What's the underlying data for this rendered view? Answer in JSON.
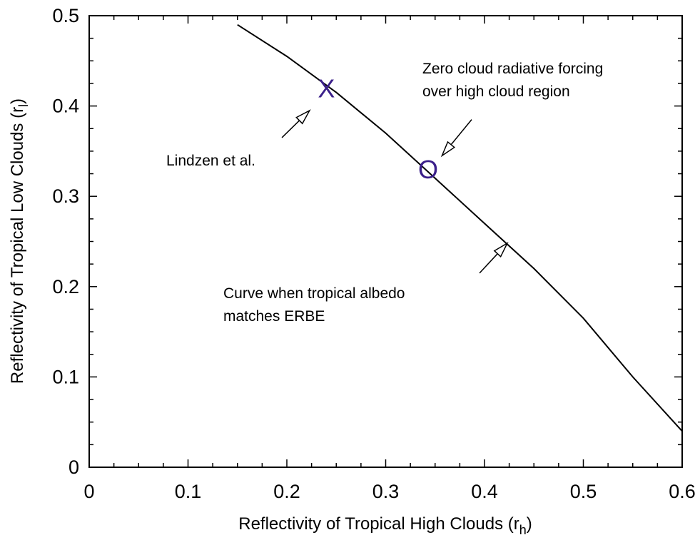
{
  "chart_data": {
    "type": "line",
    "xlabel": "Reflectivity of Tropical High Clouds (r",
    "xlabel_sub": "h",
    "xlabel_close": ")",
    "ylabel": "Reflectivity of Tropical Low Clouds (r",
    "ylabel_sub": "l",
    "ylabel_close": ")",
    "xlim": [
      0,
      0.6
    ],
    "ylim": [
      0,
      0.5
    ],
    "xticks": [
      0,
      0.1,
      0.2,
      0.3,
      0.4,
      0.5,
      0.6
    ],
    "xtick_labels": [
      "0",
      "0.1",
      "0.2",
      "0.3",
      "0.4",
      "0.5",
      "0.6"
    ],
    "yticks": [
      0,
      0.1,
      0.2,
      0.3,
      0.4,
      0.5
    ],
    "ytick_labels": [
      "0",
      "0.1",
      "0.2",
      "0.3",
      "0.4",
      "0.5"
    ],
    "grid": false,
    "series": [
      {
        "x": [
          0.15,
          0.2,
          0.25,
          0.3,
          0.35,
          0.4,
          0.45,
          0.5,
          0.55,
          0.6
        ],
        "y": [
          0.49,
          0.455,
          0.415,
          0.37,
          0.32,
          0.27,
          0.22,
          0.165,
          0.1,
          0.04
        ]
      }
    ],
    "points": [
      {
        "label": "X",
        "x": 0.24,
        "y": 0.42,
        "color": "#3b1f8a"
      },
      {
        "label": "O",
        "x": 0.343,
        "y": 0.33,
        "color": "#3b1f8a"
      }
    ],
    "annotations": [
      {
        "lines": [
          "Lindzen et al."
        ],
        "arrow_from": [
          0.195,
          0.365
        ],
        "arrow_to": [
          0.223,
          0.395
        ]
      },
      {
        "lines": [
          "Zero cloud radiative forcing",
          "over high cloud region"
        ],
        "arrow_from": [
          0.387,
          0.385
        ],
        "arrow_to": [
          0.357,
          0.345
        ]
      },
      {
        "lines": [
          "Curve when tropical albedo",
          "matches ERBE"
        ],
        "arrow_from": [
          0.395,
          0.215
        ],
        "arrow_to": [
          0.423,
          0.248
        ]
      }
    ]
  }
}
